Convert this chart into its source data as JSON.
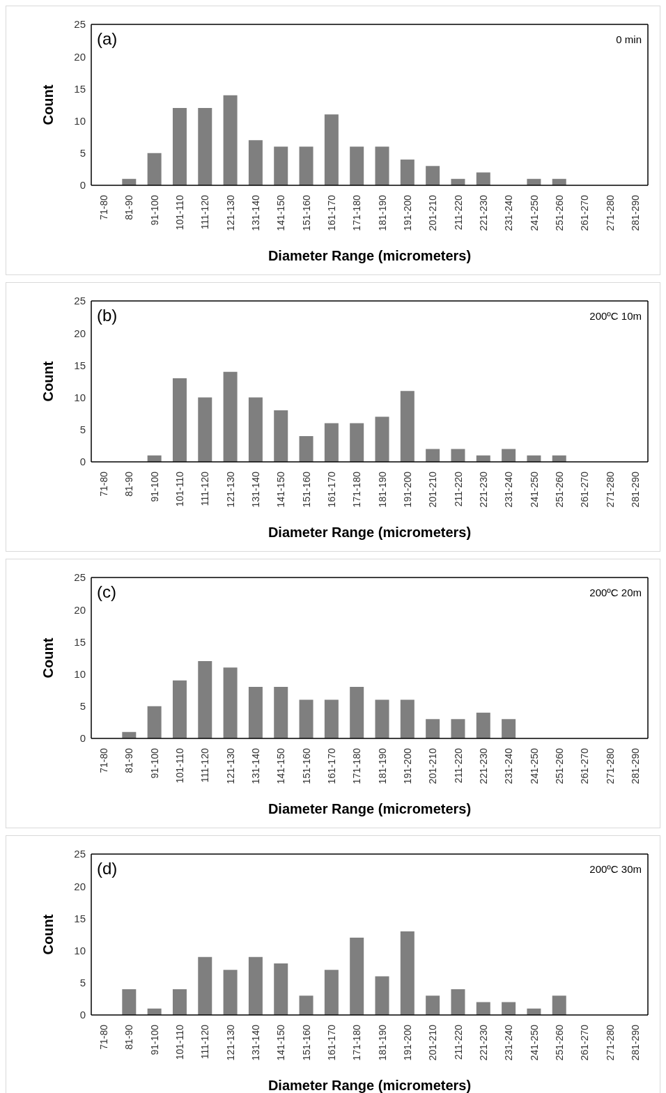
{
  "chart_data": [
    {
      "type": "bar",
      "annotations": [
        "(a)",
        "0 min"
      ],
      "xlabel": "Diameter Range (micrometers)",
      "ylabel": "Count",
      "categories": [
        "71-80",
        "81-90",
        "91-100",
        "101-110",
        "111-120",
        "121-130",
        "131-140",
        "141-150",
        "151-160",
        "161-170",
        "171-180",
        "181-190",
        "191-200",
        "201-210",
        "211-220",
        "221-230",
        "231-240",
        "241-250",
        "251-260",
        "261-270",
        "271-280",
        "281-290"
      ],
      "values": [
        0,
        1,
        5,
        12,
        12,
        14,
        7,
        6,
        6,
        11,
        6,
        6,
        4,
        3,
        1,
        2,
        0,
        1,
        1,
        0,
        0,
        0
      ],
      "color": "#7f7f7f",
      "ylim": [
        0,
        25
      ],
      "yticks": [
        0,
        5,
        10,
        15,
        20,
        25
      ]
    },
    {
      "type": "bar",
      "annotations": [
        "(b)",
        "200ºC 10m"
      ],
      "xlabel": "Diameter Range (micrometers)",
      "ylabel": "Count",
      "categories": [
        "71-80",
        "81-90",
        "91-100",
        "101-110",
        "111-120",
        "121-130",
        "131-140",
        "141-150",
        "151-160",
        "161-170",
        "171-180",
        "181-190",
        "191-200",
        "201-210",
        "211-220",
        "221-230",
        "231-240",
        "241-250",
        "251-260",
        "261-270",
        "271-280",
        "281-290"
      ],
      "values": [
        0,
        0,
        1,
        13,
        10,
        14,
        10,
        8,
        4,
        6,
        6,
        7,
        11,
        2,
        2,
        1,
        2,
        1,
        1,
        0,
        0,
        0
      ],
      "color": "#7f7f7f",
      "ylim": [
        0,
        25
      ],
      "yticks": [
        0,
        5,
        10,
        15,
        20,
        25
      ]
    },
    {
      "type": "bar",
      "annotations": [
        "(c)",
        "200ºC 20m"
      ],
      "xlabel": "Diameter Range (micrometers)",
      "ylabel": "Count",
      "categories": [
        "71-80",
        "81-90",
        "91-100",
        "101-110",
        "111-120",
        "121-130",
        "131-140",
        "141-150",
        "151-160",
        "161-170",
        "171-180",
        "181-190",
        "191-200",
        "201-210",
        "211-220",
        "221-230",
        "231-240",
        "241-250",
        "251-260",
        "261-270",
        "271-280",
        "281-290"
      ],
      "values": [
        0,
        1,
        5,
        9,
        12,
        11,
        8,
        8,
        6,
        6,
        8,
        6,
        6,
        3,
        3,
        4,
        3,
        0,
        0,
        0,
        0,
        0
      ],
      "color": "#7f7f7f",
      "ylim": [
        0,
        25
      ],
      "yticks": [
        0,
        5,
        10,
        15,
        20,
        25
      ]
    },
    {
      "type": "bar",
      "annotations": [
        "(d)",
        "200ºC 30m"
      ],
      "xlabel": "Diameter Range (micrometers)",
      "ylabel": "Count",
      "categories": [
        "71-80",
        "81-90",
        "91-100",
        "101-110",
        "111-120",
        "121-130",
        "131-140",
        "141-150",
        "151-160",
        "161-170",
        "171-180",
        "181-190",
        "191-200",
        "201-210",
        "211-220",
        "221-230",
        "231-240",
        "241-250",
        "251-260",
        "261-270",
        "271-280",
        "281-290"
      ],
      "values": [
        0,
        4,
        1,
        4,
        9,
        7,
        9,
        8,
        3,
        7,
        12,
        6,
        13,
        3,
        4,
        2,
        2,
        1,
        3,
        0,
        0,
        0
      ],
      "color": "#7f7f7f",
      "ylim": [
        0,
        25
      ],
      "yticks": [
        0,
        5,
        10,
        15,
        20,
        25
      ]
    }
  ]
}
